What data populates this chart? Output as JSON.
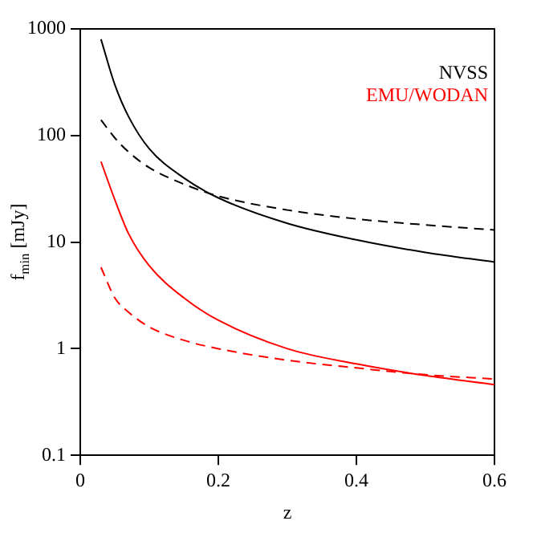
{
  "chart_data": {
    "type": "line",
    "xlabel": "z",
    "ylabel": "f$_{min}$ [mJy]",
    "log": "y",
    "xlim": [
      0,
      0.6
    ],
    "xticks": [
      0,
      0.2,
      0.4,
      0.6
    ],
    "ylim": [
      0.1,
      1000
    ],
    "yticks": [
      0.1,
      1,
      10,
      100,
      1000
    ],
    "grid": false,
    "legend": "top right",
    "marker": "none",
    "series": [
      {
        "name": "NVSS",
        "color": "#000000",
        "line_style": "solid",
        "x": [
          0.03,
          0.05,
          0.07,
          0.1,
          0.15,
          0.2,
          0.3,
          0.4,
          0.5,
          0.6
        ],
        "values": [
          800,
          300,
          150,
          75,
          40,
          26,
          15,
          10.5,
          8,
          6.5
        ]
      },
      {
        "color": "#000000",
        "line_style": "dashed",
        "x": [
          0.03,
          0.05,
          0.07,
          0.1,
          0.15,
          0.2,
          0.3,
          0.4,
          0.5,
          0.6
        ],
        "values": [
          140,
          95,
          70,
          50,
          35,
          27,
          20,
          16.5,
          14.5,
          13
        ]
      },
      {
        "name": "EMU/WODAN",
        "color": "#ff0000",
        "line_style": "solid",
        "x": [
          0.03,
          0.05,
          0.07,
          0.1,
          0.15,
          0.2,
          0.3,
          0.4,
          0.5,
          0.6
        ],
        "values": [
          57,
          25,
          12,
          6,
          3,
          1.85,
          1.0,
          0.72,
          0.56,
          0.46
        ]
      },
      {
        "color": "#ff0000",
        "line_style": "dashed",
        "x": [
          0.03,
          0.05,
          0.07,
          0.1,
          0.15,
          0.2,
          0.3,
          0.4,
          0.5,
          0.6
        ],
        "values": [
          5.8,
          3,
          2.2,
          1.6,
          1.2,
          1.0,
          0.78,
          0.66,
          0.57,
          0.52
        ]
      }
    ]
  }
}
